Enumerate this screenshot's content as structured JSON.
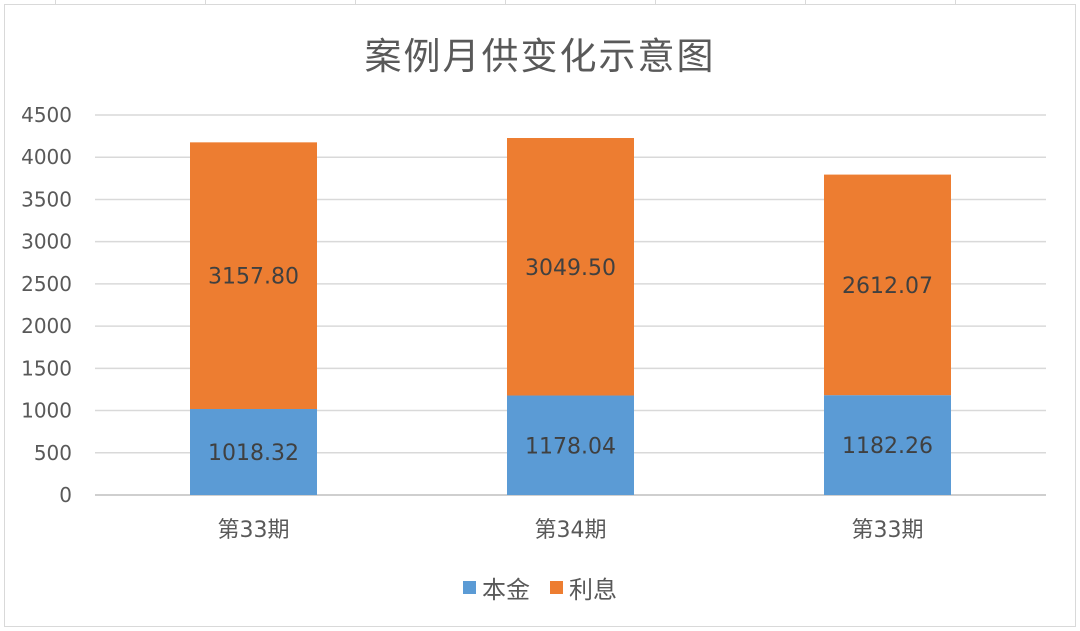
{
  "chart_data": {
    "type": "bar",
    "stacked": true,
    "title": "案例月供变化示意图",
    "categories": [
      "第33期",
      "第34期",
      "第33期"
    ],
    "series": [
      {
        "name": "本金",
        "color": "#5b9bd5",
        "values": [
          1018.32,
          1178.04,
          1182.26
        ],
        "labels": [
          "1018.32",
          "1178.04",
          "1182.26"
        ]
      },
      {
        "name": "利息",
        "color": "#ed7d31",
        "values": [
          3157.8,
          3049.5,
          2612.07
        ],
        "labels": [
          "3157.80",
          "3049.50",
          "2612.07"
        ]
      }
    ],
    "ylim": [
      0,
      4500
    ],
    "yticks": [
      0,
      500,
      1000,
      1500,
      2000,
      2500,
      3000,
      3500,
      4000,
      4500
    ],
    "xlabel": "",
    "ylabel": "",
    "grid": true,
    "legend": "bottom"
  }
}
